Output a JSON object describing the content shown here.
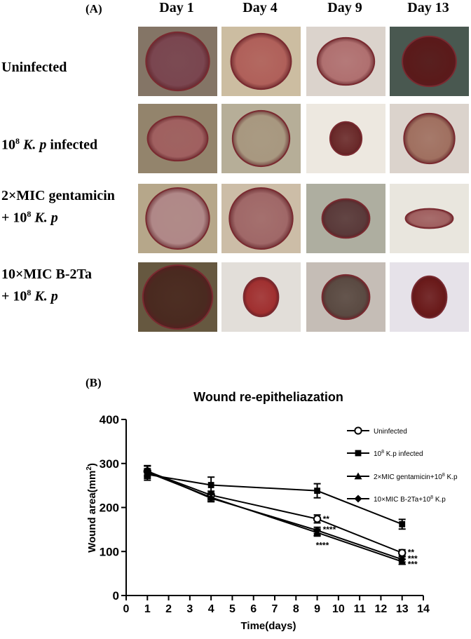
{
  "panel_a": {
    "label": "(A)",
    "days": [
      "Day 1",
      "Day 4",
      "Day 9",
      "Day 13"
    ],
    "groups": [
      {
        "lines": [
          {
            "text": "Uninfected"
          }
        ]
      },
      {
        "lines": [
          {
            "pre": "10",
            "sup": "8",
            "italic": "K. p",
            "post": " infected"
          }
        ]
      },
      {
        "lines": [
          {
            "text": "2×MIC gentamicin"
          },
          {
            "pre": "+ 10",
            "sup": "8",
            "italic": "K. p",
            "post": ""
          }
        ]
      },
      {
        "lines": [
          {
            "text": "10×MIC B-2Ta"
          },
          {
            "pre": "+ 10",
            "sup": "8",
            "italic": "K. p",
            "post": ""
          }
        ]
      }
    ],
    "wound_photos": [
      [
        {
          "skin": "#7a6a5a",
          "wound": "#7a4650",
          "rx": 0.4,
          "ry": 0.42
        },
        {
          "skin": "#c8b89a",
          "wound": "#b0605a",
          "rx": 0.38,
          "ry": 0.4
        },
        {
          "skin": "#d8d0c8",
          "wound": "#b07070",
          "rx": 0.36,
          "ry": 0.34
        },
        {
          "skin": "#3a4a42",
          "wound": "#5a1a1a",
          "rx": 0.34,
          "ry": 0.36
        }
      ],
      [
        {
          "skin": "#8a7a60",
          "wound": "#a06060",
          "rx": 0.38,
          "ry": 0.32
        },
        {
          "skin": "#b0a890",
          "wound": "#a89880",
          "rx": 0.36,
          "ry": 0.4
        },
        {
          "skin": "#ece6de",
          "wound": "#6a2a2a",
          "rx": 0.2,
          "ry": 0.24
        },
        {
          "skin": "#d8d0c8",
          "wound": "#a07060",
          "rx": 0.32,
          "ry": 0.36
        }
      ],
      [
        {
          "skin": "#b0a080",
          "wound": "#b08888",
          "rx": 0.4,
          "ry": 0.44
        },
        {
          "skin": "#c8b8a0",
          "wound": "#a06868",
          "rx": 0.4,
          "ry": 0.44
        },
        {
          "skin": "#a8a898",
          "wound": "#5a3a3a",
          "rx": 0.3,
          "ry": 0.28
        },
        {
          "skin": "#e8e4dc",
          "wound": "#a06060",
          "rx": 0.3,
          "ry": 0.14
        }
      ],
      [
        {
          "skin": "#5a4a30",
          "wound": "#4a2a20",
          "rx": 0.44,
          "ry": 0.46
        },
        {
          "skin": "#e0dcd6",
          "wound": "#a03030",
          "rx": 0.22,
          "ry": 0.28
        },
        {
          "skin": "#c0b8b0",
          "wound": "#5a4a42",
          "rx": 0.3,
          "ry": 0.32
        },
        {
          "skin": "#e4e0e8",
          "wound": "#6a1a1a",
          "rx": 0.22,
          "ry": 0.3
        }
      ]
    ]
  },
  "panel_b_label": "(B)",
  "chart_data": {
    "type": "line",
    "title": "Wound re-epitheliazation",
    "xlabel": "Time(days)",
    "ylabel_main": "Wound area(mm",
    "ylabel_sup": "2",
    "ylabel_end": ")",
    "xlim": [
      0,
      14
    ],
    "ylim": [
      0,
      400
    ],
    "xticks": [
      0,
      1,
      2,
      3,
      4,
      5,
      6,
      7,
      8,
      9,
      10,
      11,
      12,
      13,
      14
    ],
    "yticks": [
      0,
      100,
      200,
      300,
      400
    ],
    "x": [
      1,
      4,
      9,
      13
    ],
    "series": [
      {
        "name": "Uninfected",
        "marker": "circle-open",
        "values": [
          282,
          228,
          174,
          97
        ],
        "errors": [
          13,
          9,
          9,
          7
        ]
      },
      {
        "name_pre": "10",
        "name_sup": "8",
        "name_post": " K.p infected",
        "marker": "square",
        "values": [
          275,
          251,
          238,
          162
        ],
        "errors": [
          13,
          18,
          16,
          11
        ]
      },
      {
        "name_pre": "2×MIC gentamicin+10",
        "name_sup": "8",
        "name_post": " K.p",
        "marker": "triangle",
        "values": [
          280,
          223,
          143,
          77
        ],
        "errors": [
          14,
          9,
          8,
          6
        ]
      },
      {
        "name_pre": "10×MIC B-2Ta+10",
        "name_sup": "8",
        "name_post": " K.p",
        "marker": "diamond",
        "values": [
          283,
          221,
          148,
          82
        ],
        "errors": [
          12,
          8,
          7,
          6
        ]
      }
    ],
    "annotations": [
      {
        "x": 9,
        "y": 174,
        "text": "**"
      },
      {
        "x": 9,
        "y": 150,
        "text": "****"
      },
      {
        "x": 9,
        "y": 127,
        "text": "****"
      },
      {
        "x": 13,
        "y": 98,
        "text": "**"
      },
      {
        "x": 13,
        "y": 84,
        "text": "***"
      },
      {
        "x": 13,
        "y": 71,
        "text": "***"
      }
    ],
    "legend_position": "top-right",
    "grid": false
  }
}
